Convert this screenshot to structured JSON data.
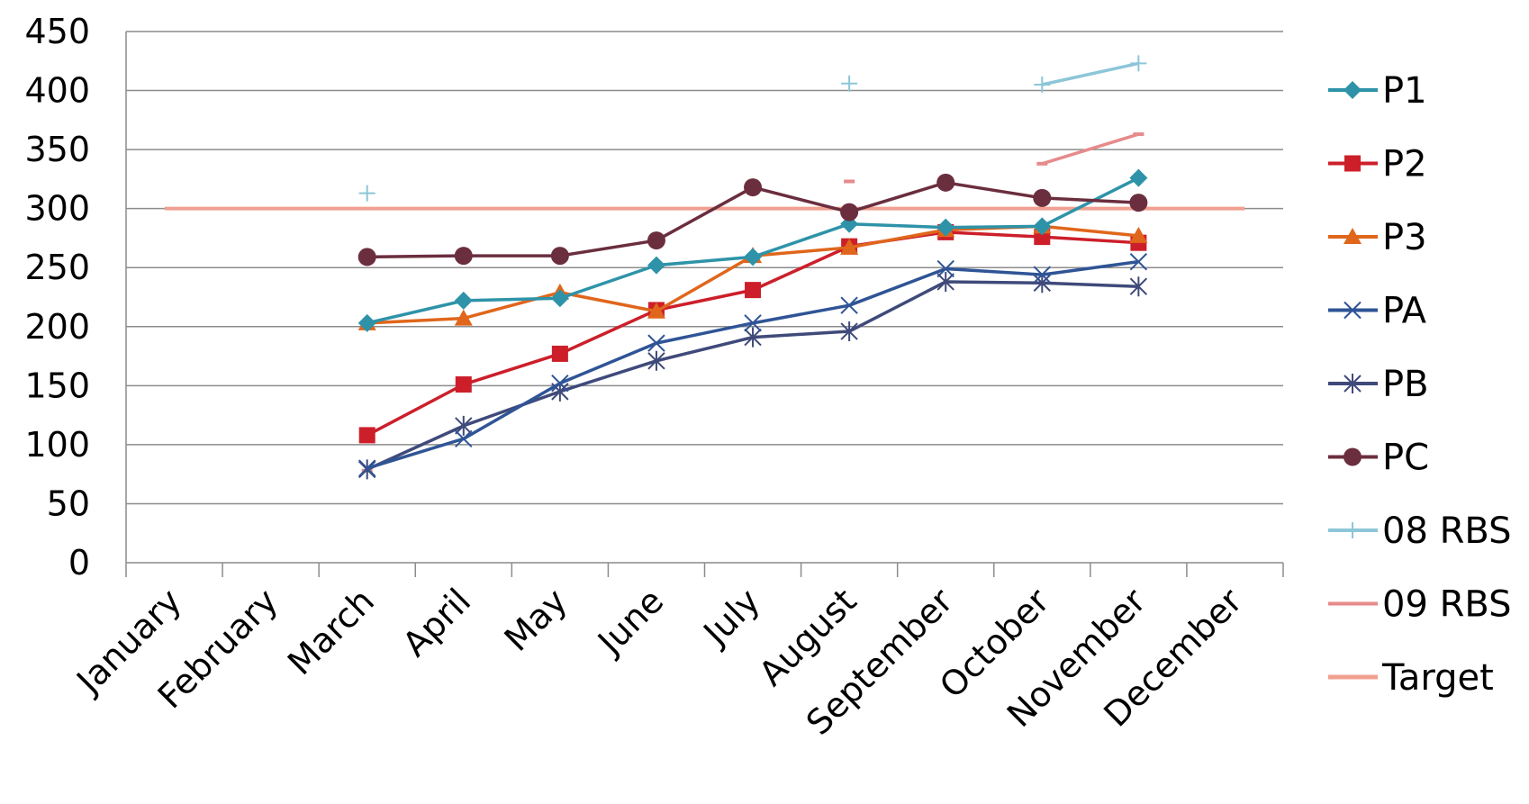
{
  "chart_data": {
    "type": "line",
    "categories": [
      "January",
      "February",
      "March",
      "April",
      "May",
      "June",
      "July",
      "August",
      "September",
      "October",
      "November",
      "December"
    ],
    "ylim": [
      0,
      450
    ],
    "yticks": [
      0,
      50,
      100,
      150,
      200,
      250,
      300,
      350,
      400,
      450
    ],
    "grid": true,
    "legend_position": "right",
    "series": [
      {
        "name": "P1",
        "color": "#2e93a8",
        "marker": "diamond",
        "values": [
          null,
          null,
          203,
          222,
          224,
          252,
          259,
          287,
          284,
          285,
          326,
          null
        ]
      },
      {
        "name": "P2",
        "color": "#cc1f2a",
        "marker": "square",
        "values": [
          null,
          null,
          108,
          151,
          177,
          214,
          231,
          268,
          280,
          276,
          271,
          null
        ]
      },
      {
        "name": "P3",
        "color": "#e0661b",
        "marker": "triangle",
        "values": [
          null,
          null,
          203,
          207,
          229,
          213,
          260,
          267,
          282,
          285,
          277,
          null
        ]
      },
      {
        "name": "PA",
        "color": "#2f5496",
        "marker": "x",
        "values": [
          null,
          null,
          80,
          105,
          152,
          186,
          203,
          218,
          249,
          244,
          255,
          null
        ]
      },
      {
        "name": "PB",
        "color": "#3f4a7a",
        "marker": "star",
        "values": [
          null,
          null,
          79,
          116,
          145,
          171,
          191,
          196,
          238,
          237,
          234,
          null
        ]
      },
      {
        "name": "PC",
        "color": "#6b2e3e",
        "marker": "circle",
        "values": [
          null,
          null,
          259,
          260,
          260,
          273,
          318,
          297,
          322,
          309,
          305,
          null
        ]
      },
      {
        "name": "08 RBS",
        "color": "#8cc6d8",
        "marker": "plus",
        "values": [
          null,
          null,
          313,
          null,
          null,
          null,
          null,
          406,
          null,
          405,
          423,
          null
        ]
      },
      {
        "name": "09 RBS",
        "color": "#e68a8a",
        "marker": "dash",
        "values": [
          null,
          null,
          78,
          null,
          null,
          null,
          null,
          323,
          null,
          338,
          363,
          null
        ]
      },
      {
        "name": "Target",
        "color": "#f0a090",
        "marker": "none",
        "values": [
          300,
          300,
          300,
          300,
          300,
          300,
          300,
          300,
          300,
          300,
          300,
          300
        ]
      }
    ]
  }
}
